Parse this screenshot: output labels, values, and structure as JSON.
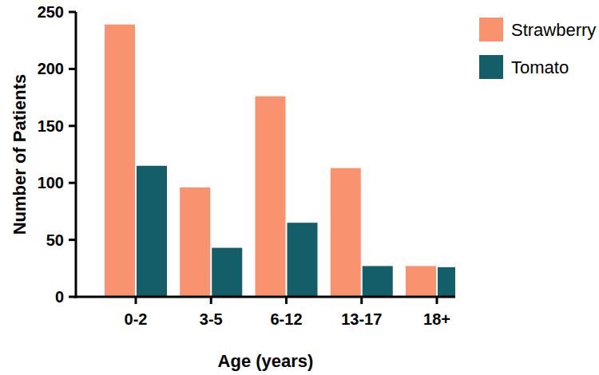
{
  "chart_data": {
    "type": "bar",
    "x_label": "Age (years)",
    "y_label": "Number of Patients",
    "categories": [
      "0-2",
      "3-5",
      "6-12",
      "13-17",
      "18+"
    ],
    "series": [
      {
        "name": "Strawberry",
        "color": "#f9926f",
        "values": [
          239,
          96,
          176,
          113,
          27
        ]
      },
      {
        "name": "Tomato",
        "color": "#135e68",
        "values": [
          115,
          43,
          65,
          27,
          26
        ]
      }
    ],
    "ylim": [
      0,
      250
    ],
    "yticks": [
      0,
      50,
      100,
      150,
      200,
      250
    ],
    "grid": false,
    "legend": "top-right"
  }
}
